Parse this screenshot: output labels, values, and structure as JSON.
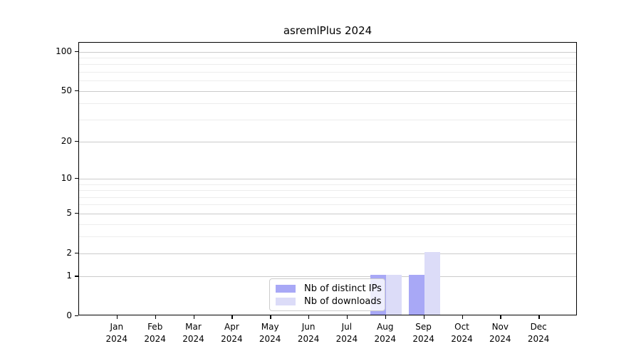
{
  "figure": {
    "background": "#ffffff",
    "border_color": "#000000"
  },
  "chart_data": {
    "type": "bar",
    "title": "asremlPlus 2024",
    "xlabel": "",
    "ylabel": "",
    "categories": [
      "Jan",
      "Feb",
      "Mar",
      "Apr",
      "May",
      "Jun",
      "Jul",
      "Aug",
      "Sep",
      "Oct",
      "Nov",
      "Dec"
    ],
    "category_year": "2024",
    "series": [
      {
        "name": "Nb of distinct IPs",
        "color": "#a8a8f6",
        "values": [
          0,
          0,
          0,
          0,
          0,
          0,
          0,
          1,
          1,
          0,
          0,
          0
        ]
      },
      {
        "name": "Nb of downloads",
        "color": "#dcdcf8",
        "values": [
          0,
          0,
          0,
          0,
          0,
          0,
          0,
          1,
          2,
          0,
          0,
          0
        ]
      }
    ],
    "yticks": [
      0,
      1,
      2,
      5,
      10,
      20,
      50,
      100
    ],
    "y_scale": "log10(value+1)",
    "ylim": [
      0,
      117
    ],
    "grid": {
      "major": [
        1,
        2,
        5,
        10,
        20,
        50,
        100
      ],
      "minor": [
        3,
        4,
        6,
        7,
        8,
        9,
        30,
        40,
        60,
        70,
        80,
        90
      ],
      "major_color": "#cbcbcb",
      "minor_color": "#ededed"
    },
    "legend": {
      "position": "lower center",
      "entries": [
        "Nb of distinct IPs",
        "Nb of downloads"
      ]
    }
  }
}
